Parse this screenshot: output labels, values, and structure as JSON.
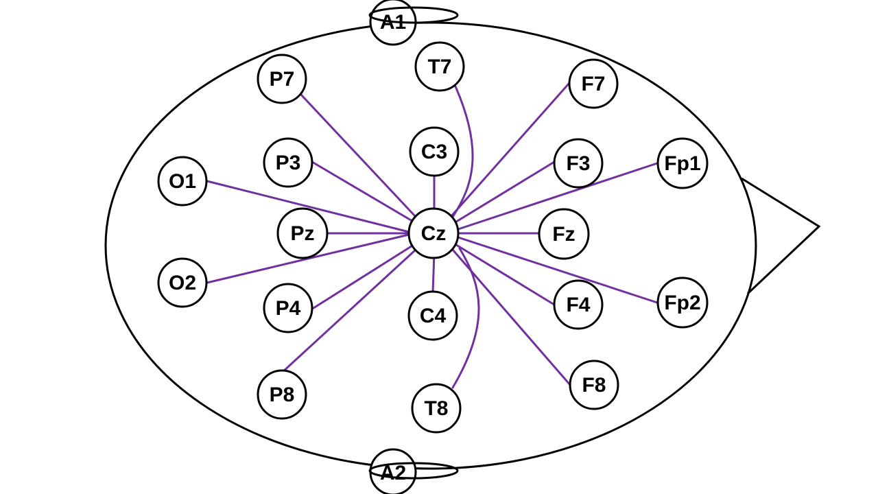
{
  "colors": {
    "connector": "#7030a0",
    "outline": "#000000",
    "electrode_fill": "#ffffff"
  },
  "center_electrode": "Cz",
  "electrodes": {
    "A1": "A1",
    "A2": "A2",
    "T7": "T7",
    "T8": "T8",
    "P7": "P7",
    "P8": "P8",
    "F7": "F7",
    "F8": "F8",
    "C3": "C3",
    "C4": "C4",
    "P3": "P3",
    "P4": "P4",
    "F3": "F3",
    "F4": "F4",
    "O1": "O1",
    "O2": "O2",
    "Pz": "Pz",
    "Fz": "Fz",
    "Fp1": "Fp1",
    "Fp2": "Fp2",
    "Cz": "Cz"
  },
  "connections": [
    [
      "Cz",
      "P7"
    ],
    [
      "Cz",
      "T7"
    ],
    [
      "Cz",
      "F7"
    ],
    [
      "Cz",
      "C3"
    ],
    [
      "Cz",
      "P3"
    ],
    [
      "Cz",
      "F3"
    ],
    [
      "Cz",
      "Fp1"
    ],
    [
      "Cz",
      "O1"
    ],
    [
      "Cz",
      "Pz"
    ],
    [
      "Cz",
      "Fz"
    ],
    [
      "Cz",
      "O2"
    ],
    [
      "Cz",
      "P4"
    ],
    [
      "Cz",
      "F4"
    ],
    [
      "Cz",
      "Fp2"
    ],
    [
      "Cz",
      "C4"
    ],
    [
      "Cz",
      "P8"
    ],
    [
      "Cz",
      "T8"
    ],
    [
      "Cz",
      "F8"
    ]
  ]
}
